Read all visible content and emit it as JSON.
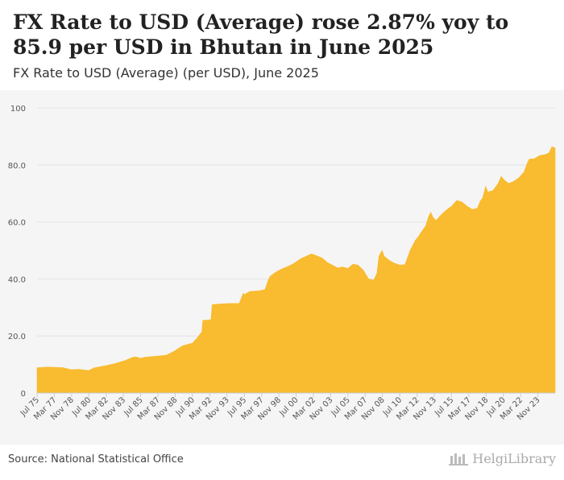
{
  "header": {
    "title": "FX Rate to USD (Average) rose 2.87% yoy to 85.9 per USD in Bhutan in June 2025",
    "subtitle": "FX Rate to USD (Average) (per USD), June 2025"
  },
  "footer": {
    "source": "Source: National Statistical Office",
    "brand": "HelgiLibrary"
  },
  "colors": {
    "area": "#f9bb2f",
    "grid": "#e3e3e3",
    "axis": "#cccccc",
    "tick_text": "#555555"
  },
  "chart_data": {
    "type": "area",
    "title": "FX Rate to USD (Average) (per USD), June 2025",
    "xlabel": "",
    "ylabel": "",
    "ylim": [
      0,
      100
    ],
    "yticks": [
      "0",
      "20.0",
      "40.0",
      "60.0",
      "80.0",
      "100"
    ],
    "xlim": [
      1975.5,
      2025.5
    ],
    "xticks": [
      {
        "label": "Jul 75",
        "x": 1975.5
      },
      {
        "label": "Mar 77",
        "x": 1977.17
      },
      {
        "label": "Nov 78",
        "x": 1978.83
      },
      {
        "label": "Jul 80",
        "x": 1980.5
      },
      {
        "label": "Mar 82",
        "x": 1982.17
      },
      {
        "label": "Nov 83",
        "x": 1983.83
      },
      {
        "label": "Jul 85",
        "x": 1985.5
      },
      {
        "label": "Mar 87",
        "x": 1987.17
      },
      {
        "label": "Nov 88",
        "x": 1988.83
      },
      {
        "label": "Jul 90",
        "x": 1990.5
      },
      {
        "label": "Mar 92",
        "x": 1992.17
      },
      {
        "label": "Nov 93",
        "x": 1993.83
      },
      {
        "label": "Jul 95",
        "x": 1995.5
      },
      {
        "label": "Mar 97",
        "x": 1997.17
      },
      {
        "label": "Nov 98",
        "x": 1998.83
      },
      {
        "label": "Jul 00",
        "x": 2000.5
      },
      {
        "label": "Mar 02",
        "x": 2002.17
      },
      {
        "label": "Nov 03",
        "x": 2003.83
      },
      {
        "label": "Jul 05",
        "x": 2005.5
      },
      {
        "label": "Mar 07",
        "x": 2007.17
      },
      {
        "label": "Nov 08",
        "x": 2008.83
      },
      {
        "label": "Jul 10",
        "x": 2010.5
      },
      {
        "label": "Mar 12",
        "x": 2012.17
      },
      {
        "label": "Nov 13",
        "x": 2013.83
      },
      {
        "label": "Jul 15",
        "x": 2015.5
      },
      {
        "label": "Mar 17",
        "x": 2017.17
      },
      {
        "label": "Nov 18",
        "x": 2018.83
      },
      {
        "label": "Jul 20",
        "x": 2020.5
      },
      {
        "label": "Mar 22",
        "x": 2022.17
      },
      {
        "label": "Nov 23",
        "x": 2023.83
      }
    ],
    "series": [
      {
        "name": "FX Rate to USD (Average)",
        "x": [
          1975.5,
          1976.5,
          1977.2,
          1978.0,
          1978.8,
          1979.5,
          1980.0,
          1980.5,
          1981.0,
          1982.0,
          1983.0,
          1984.0,
          1984.7,
          1985.0,
          1985.5,
          1986.0,
          1987.0,
          1988.0,
          1988.8,
          1989.5,
          1990.0,
          1990.5,
          1991.0,
          1991.4,
          1991.5,
          1992.0,
          1992.3,
          1992.4,
          1993.0,
          1994.0,
          1994.8,
          1995.0,
          1995.4,
          1995.5,
          1996.0,
          1997.0,
          1997.5,
          1997.8,
          1998.0,
          1998.5,
          1999.0,
          2000.0,
          2000.5,
          2001.0,
          2002.0,
          2003.0,
          2003.5,
          2004.0,
          2004.5,
          2005.0,
          2005.5,
          2006.0,
          2006.5,
          2007.0,
          2007.5,
          2008.0,
          2008.3,
          2008.5,
          2008.8,
          2009.0,
          2009.5,
          2010.0,
          2010.5,
          2011.0,
          2011.5,
          2012.0,
          2012.3,
          2012.5,
          2013.0,
          2013.3,
          2013.5,
          2013.7,
          2014.0,
          2014.5,
          2015.0,
          2015.5,
          2016.0,
          2016.5,
          2017.0,
          2017.5,
          2018.0,
          2018.3,
          2018.5,
          2018.8,
          2019.0,
          2019.5,
          2020.0,
          2020.3,
          2020.5,
          2021.0,
          2021.5,
          2022.0,
          2022.5,
          2022.8,
          2023.0,
          2023.5,
          2024.0,
          2024.5,
          2024.9,
          2025.2,
          2025.5
        ],
        "values": [
          8.9,
          9.1,
          9.0,
          8.9,
          8.2,
          8.3,
          8.1,
          7.9,
          8.8,
          9.5,
          10.3,
          11.4,
          12.5,
          12.7,
          12.2,
          12.6,
          12.9,
          13.3,
          14.8,
          16.5,
          17.0,
          17.5,
          19.5,
          21.5,
          25.5,
          25.6,
          25.8,
          31.0,
          31.2,
          31.4,
          31.4,
          31.4,
          35.0,
          34.5,
          35.6,
          35.9,
          36.3,
          39.5,
          41.0,
          42.3,
          43.3,
          44.9,
          46.0,
          47.2,
          48.8,
          47.4,
          45.8,
          44.9,
          43.9,
          44.2,
          43.7,
          45.2,
          44.8,
          43.0,
          40.0,
          39.6,
          42.0,
          48.0,
          50.0,
          48.0,
          46.5,
          45.5,
          44.9,
          45.0,
          50.0,
          53.5,
          54.8,
          56.0,
          58.6,
          62.0,
          63.4,
          61.7,
          60.5,
          62.5,
          64.2,
          65.5,
          67.5,
          67.0,
          65.5,
          64.4,
          64.8,
          67.5,
          68.4,
          72.5,
          70.5,
          71.0,
          73.5,
          76.0,
          75.0,
          73.5,
          74.2,
          75.5,
          77.5,
          80.6,
          82.0,
          82.2,
          83.3,
          83.6,
          84.2,
          86.4,
          85.9
        ]
      }
    ]
  }
}
